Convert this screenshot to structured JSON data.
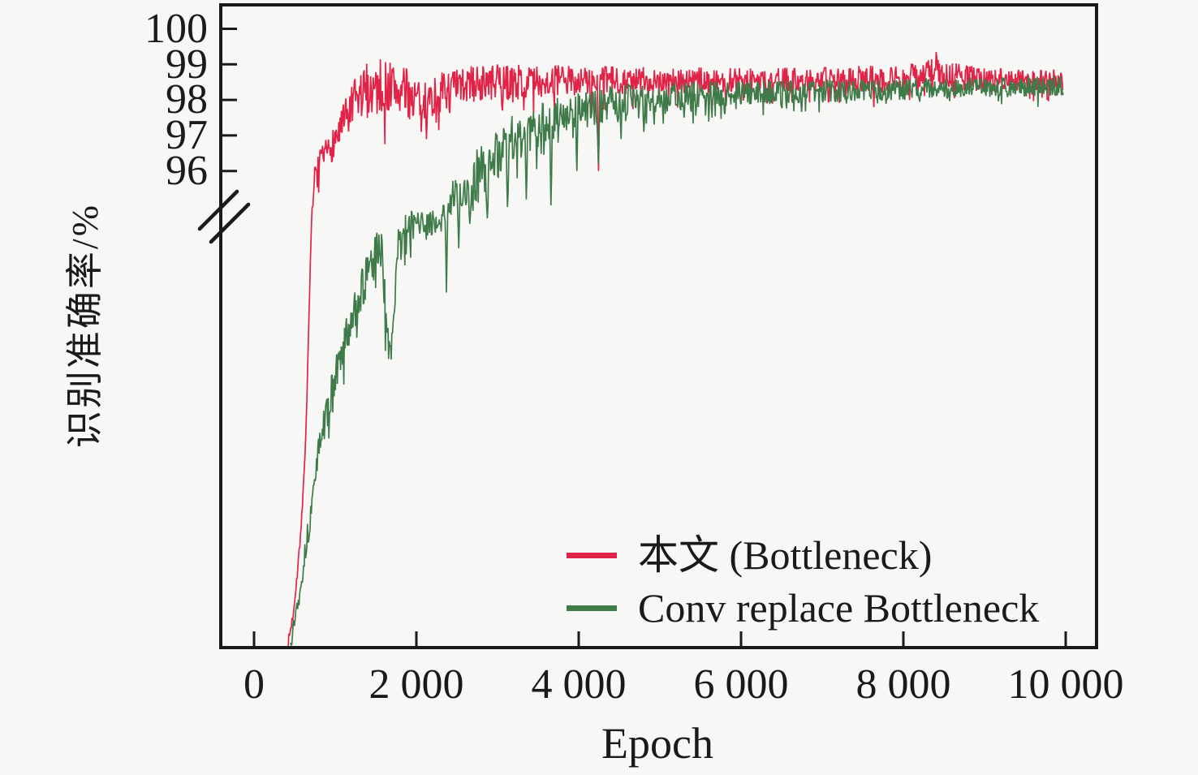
{
  "figure": {
    "background": "#f7f7f5",
    "axis_color": "#1a1a1a"
  },
  "chart_data": {
    "type": "line",
    "title": "",
    "xlabel": "Epoch",
    "ylabel": "识别准确率/%",
    "xlim": [
      0,
      10400
    ],
    "x_ticks": [
      0,
      2000,
      4000,
      6000,
      8000,
      10000
    ],
    "x_ticklabels": [
      "0",
      "2 000",
      "4 000",
      "6 000",
      "8 000",
      "10 000"
    ],
    "y_ticks": [
      100,
      99,
      98,
      97,
      96
    ],
    "y_ticklabels": [
      "100",
      "99",
      "98",
      "97",
      "96"
    ],
    "grid": false,
    "axis_break": {
      "on_y_axis": true,
      "break_below_value": 96,
      "upper_scale": [
        95.1,
        100.6
      ],
      "lower_compressed_scale": [
        40,
        95.1
      ]
    },
    "legend": {
      "position": "lower-right",
      "items": [
        "本文 (Bottleneck)",
        "Conv replace Bottleneck"
      ]
    },
    "series": [
      {
        "name": "本文 (Bottleneck)",
        "color": "#e02347",
        "description": "training accuracy, rises steeply near epoch 500 and saturates ~98.6%",
        "mean_points": [
          [
            420,
            40.5
          ],
          [
            480,
            44
          ],
          [
            540,
            50
          ],
          [
            600,
            58
          ],
          [
            640,
            67
          ],
          [
            670,
            78
          ],
          [
            695,
            88
          ],
          [
            715,
            94.5
          ],
          [
            730,
            95.4
          ],
          [
            760,
            95.9
          ],
          [
            820,
            96.2
          ],
          [
            900,
            96.5
          ],
          [
            1000,
            96.9
          ],
          [
            1100,
            97.3
          ],
          [
            1250,
            97.9
          ],
          [
            1400,
            98.3
          ],
          [
            1650,
            98.4
          ],
          [
            1900,
            98.15
          ],
          [
            2100,
            97.95
          ],
          [
            2350,
            98.25
          ],
          [
            2700,
            98.45
          ],
          [
            3200,
            98.5
          ],
          [
            4000,
            98.55
          ],
          [
            5000,
            98.55
          ],
          [
            6000,
            98.55
          ],
          [
            7000,
            98.58
          ],
          [
            8000,
            98.6
          ],
          [
            8450,
            98.75
          ],
          [
            8800,
            98.6
          ],
          [
            9970,
            98.55
          ]
        ],
        "noise_points": [
          [
            420,
            0.8
          ],
          [
            700,
            0.45
          ],
          [
            800,
            0.4
          ],
          [
            1000,
            0.5
          ],
          [
            1300,
            0.8
          ],
          [
            1700,
            0.8
          ],
          [
            2100,
            0.6
          ],
          [
            2600,
            0.55
          ],
          [
            3200,
            0.5
          ],
          [
            4000,
            0.42
          ],
          [
            5000,
            0.38
          ],
          [
            6000,
            0.35
          ],
          [
            7000,
            0.33
          ],
          [
            8450,
            0.45
          ],
          [
            9000,
            0.32
          ],
          [
            9970,
            0.3
          ]
        ],
        "spikes": [
          [
            2060,
            97.1
          ],
          [
            3060,
            97.7
          ],
          [
            4150,
            97.5
          ],
          [
            4240,
            96.0
          ],
          [
            6320,
            97.9
          ],
          [
            8400,
            99.35
          ]
        ]
      },
      {
        "name": "Conv replace Bottleneck",
        "color": "#3f7b49",
        "description": "training accuracy, staircase rise until ~epoch 2500 then saturates ~98.35%",
        "mean_points": [
          [
            450,
            40.5
          ],
          [
            560,
            47
          ],
          [
            640,
            52.5
          ],
          [
            700,
            56.5
          ],
          [
            770,
            63
          ],
          [
            870,
            68
          ],
          [
            990,
            73
          ],
          [
            1120,
            78
          ],
          [
            1270,
            83
          ],
          [
            1420,
            86.5
          ],
          [
            1570,
            90
          ],
          [
            1680,
            74
          ],
          [
            1760,
            88.5
          ],
          [
            1820,
            91
          ],
          [
            1970,
            92.5
          ],
          [
            2120,
            92
          ],
          [
            2270,
            93.2
          ],
          [
            2400,
            94.4
          ],
          [
            2470,
            95.0
          ],
          [
            2700,
            95.7
          ],
          [
            2900,
            96.2
          ],
          [
            3200,
            96.9
          ],
          [
            3500,
            97.3
          ],
          [
            3800,
            97.55
          ],
          [
            4200,
            97.8
          ],
          [
            4600,
            98.0
          ],
          [
            5200,
            98.1
          ],
          [
            6000,
            98.2
          ],
          [
            7000,
            98.25
          ],
          [
            8000,
            98.3
          ],
          [
            9000,
            98.35
          ],
          [
            9970,
            98.4
          ]
        ],
        "noise_points": [
          [
            450,
            0.8
          ],
          [
            700,
            1.8
          ],
          [
            900,
            2.2
          ],
          [
            1200,
            2.6
          ],
          [
            1500,
            3.0
          ],
          [
            1700,
            3.2
          ],
          [
            1900,
            2.2
          ],
          [
            2200,
            1.6
          ],
          [
            2400,
            1.1
          ],
          [
            2500,
            0.85
          ],
          [
            2700,
            0.8
          ],
          [
            3000,
            0.75
          ],
          [
            3400,
            0.65
          ],
          [
            3800,
            0.55
          ],
          [
            4300,
            0.5
          ],
          [
            5000,
            0.42
          ],
          [
            6000,
            0.35
          ],
          [
            7000,
            0.32
          ],
          [
            8000,
            0.3
          ],
          [
            9970,
            0.28
          ]
        ],
        "spikes": [
          [
            2370,
            84
          ],
          [
            2520,
            89.5
          ],
          [
            2660,
            92.5
          ],
          [
            2870,
            93.2
          ],
          [
            3120,
            94.6
          ],
          [
            3350,
            95.2
          ],
          [
            3660,
            94.8
          ],
          [
            3980,
            96.0
          ],
          [
            4240,
            96.2
          ],
          [
            4520,
            96.9
          ],
          [
            4800,
            97.1
          ],
          [
            5300,
            97.5
          ],
          [
            5800,
            97.6
          ],
          [
            6500,
            97.8
          ],
          [
            7300,
            97.9
          ],
          [
            8200,
            97.95
          ]
        ]
      }
    ]
  }
}
